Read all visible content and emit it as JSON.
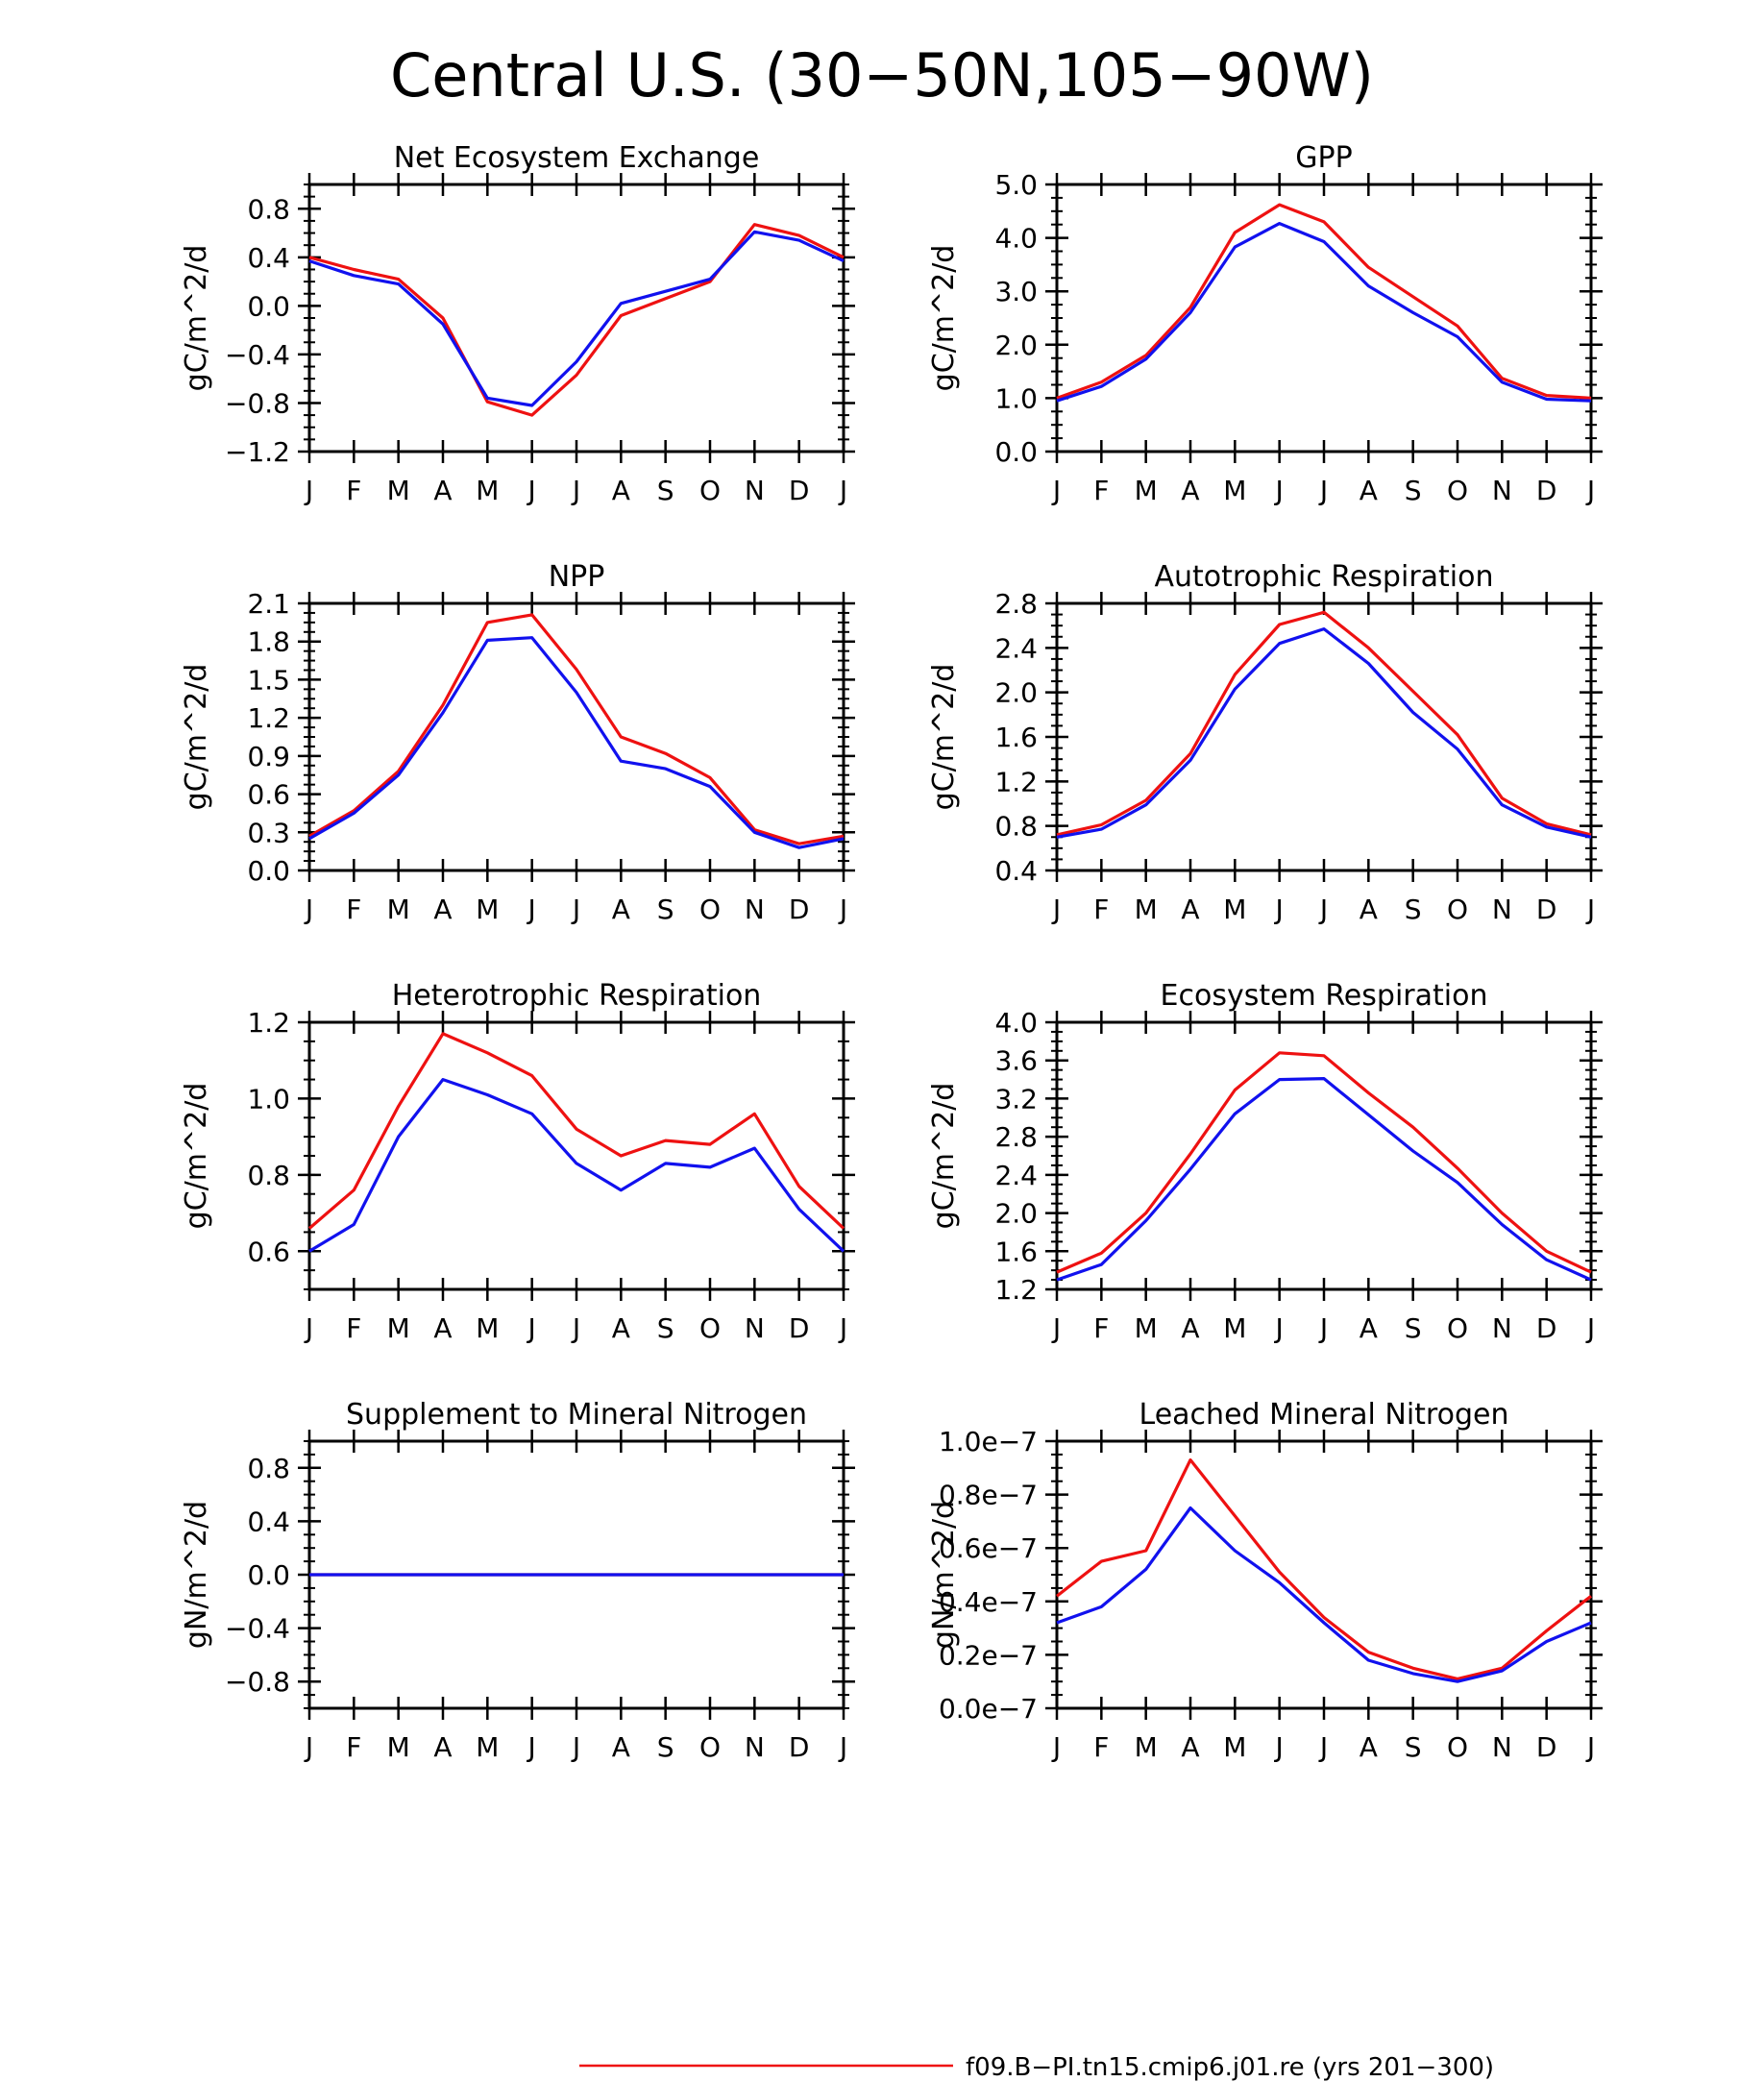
{
  "figure": {
    "title": "Central U.S. (30−50N,105−90W)",
    "legend": [
      {
        "label": "f09.B−PI.tn15.cmip6.j01.re (yrs 201−300)",
        "color": "#ee1111"
      }
    ]
  },
  "colors": {
    "red": "#ee1111",
    "blue": "#1111ee",
    "axis": "#000000"
  },
  "chart_data": [
    {
      "type": "line",
      "title": "Net Ecosystem Exchange",
      "ylabel": "gC/m^2/d",
      "x": [
        "J",
        "F",
        "M",
        "A",
        "M",
        "J",
        "J",
        "A",
        "S",
        "O",
        "N",
        "D",
        "J"
      ],
      "ylim": [
        -1.2,
        1.0
      ],
      "yticks": [
        -1.2,
        -0.8,
        -0.4,
        0.0,
        0.4,
        0.8
      ],
      "ytick_labels": [
        "−1.2",
        "−0.8",
        "−0.4",
        "0.0",
        "0.4",
        "0.8"
      ],
      "series": [
        {
          "color": "red",
          "values": [
            0.4,
            0.3,
            0.22,
            -0.1,
            -0.79,
            -0.9,
            -0.57,
            -0.08,
            0.06,
            0.2,
            0.67,
            0.58,
            0.4
          ]
        },
        {
          "color": "blue",
          "values": [
            0.37,
            0.25,
            0.18,
            -0.15,
            -0.76,
            -0.82,
            -0.46,
            0.02,
            0.12,
            0.22,
            0.61,
            0.54,
            0.37
          ]
        }
      ]
    },
    {
      "type": "line",
      "title": "GPP",
      "ylabel": "gC/m^2/d",
      "x": [
        "J",
        "F",
        "M",
        "A",
        "M",
        "J",
        "J",
        "A",
        "S",
        "O",
        "N",
        "D",
        "J"
      ],
      "ylim": [
        0.0,
        5.0
      ],
      "yticks": [
        0.0,
        1.0,
        2.0,
        3.0,
        4.0,
        5.0
      ],
      "ytick_labels": [
        "0.0",
        "1.0",
        "2.0",
        "3.0",
        "4.0",
        "5.0"
      ],
      "series": [
        {
          "color": "red",
          "values": [
            1.0,
            1.3,
            1.8,
            2.7,
            4.1,
            4.62,
            4.3,
            3.45,
            2.9,
            2.35,
            1.37,
            1.05,
            1.0
          ]
        },
        {
          "color": "blue",
          "values": [
            0.95,
            1.22,
            1.73,
            2.6,
            3.83,
            4.27,
            3.93,
            3.1,
            2.6,
            2.15,
            1.3,
            0.98,
            0.95
          ]
        }
      ]
    },
    {
      "type": "line",
      "title": "NPP",
      "ylabel": "gC/m^2/d",
      "x": [
        "J",
        "F",
        "M",
        "A",
        "M",
        "J",
        "J",
        "A",
        "S",
        "O",
        "N",
        "D",
        "J"
      ],
      "ylim": [
        0.0,
        2.1
      ],
      "yticks": [
        0.0,
        0.3,
        0.6,
        0.9,
        1.2,
        1.5,
        1.8,
        2.1
      ],
      "ytick_labels": [
        "0.0",
        "0.3",
        "0.6",
        "0.9",
        "1.2",
        "1.5",
        "1.8",
        "2.1"
      ],
      "series": [
        {
          "color": "red",
          "values": [
            0.27,
            0.47,
            0.78,
            1.3,
            1.95,
            2.01,
            1.58,
            1.05,
            0.92,
            0.73,
            0.32,
            0.21,
            0.27
          ]
        },
        {
          "color": "blue",
          "values": [
            0.25,
            0.45,
            0.75,
            1.24,
            1.81,
            1.83,
            1.4,
            0.86,
            0.8,
            0.66,
            0.3,
            0.18,
            0.25
          ]
        }
      ]
    },
    {
      "type": "line",
      "title": "Autotrophic Respiration",
      "ylabel": "gC/m^2/d",
      "x": [
        "J",
        "F",
        "M",
        "A",
        "M",
        "J",
        "J",
        "A",
        "S",
        "O",
        "N",
        "D",
        "J"
      ],
      "ylim": [
        0.4,
        2.8
      ],
      "yticks": [
        0.4,
        0.8,
        1.2,
        1.6,
        2.0,
        2.4,
        2.8
      ],
      "ytick_labels": [
        "0.4",
        "0.8",
        "1.2",
        "1.6",
        "2.0",
        "2.4",
        "2.8"
      ],
      "series": [
        {
          "color": "red",
          "values": [
            0.72,
            0.81,
            1.03,
            1.45,
            2.16,
            2.61,
            2.72,
            2.4,
            2.01,
            1.62,
            1.05,
            0.82,
            0.72
          ]
        },
        {
          "color": "blue",
          "values": [
            0.7,
            0.77,
            0.99,
            1.39,
            2.03,
            2.44,
            2.57,
            2.26,
            1.82,
            1.49,
            0.99,
            0.79,
            0.7
          ]
        }
      ]
    },
    {
      "type": "line",
      "title": "Heterotrophic Respiration",
      "ylabel": "gC/m^2/d",
      "x": [
        "J",
        "F",
        "M",
        "A",
        "M",
        "J",
        "J",
        "A",
        "S",
        "O",
        "N",
        "D",
        "J"
      ],
      "ylim": [
        0.5,
        1.2
      ],
      "yticks": [
        0.6,
        0.8,
        1.0,
        1.2
      ],
      "ytick_labels": [
        "0.6",
        "0.8",
        "1.0",
        "1.2"
      ],
      "series": [
        {
          "color": "red",
          "values": [
            0.66,
            0.76,
            0.98,
            1.17,
            1.12,
            1.06,
            0.92,
            0.85,
            0.89,
            0.88,
            0.96,
            0.77,
            0.66
          ]
        },
        {
          "color": "blue",
          "values": [
            0.6,
            0.67,
            0.9,
            1.05,
            1.01,
            0.96,
            0.83,
            0.76,
            0.83,
            0.82,
            0.87,
            0.71,
            0.6
          ]
        }
      ]
    },
    {
      "type": "line",
      "title": "Ecosystem Respiration",
      "ylabel": "gC/m^2/d",
      "x": [
        "J",
        "F",
        "M",
        "A",
        "M",
        "J",
        "J",
        "A",
        "S",
        "O",
        "N",
        "D",
        "J"
      ],
      "ylim": [
        1.2,
        4.0
      ],
      "yticks": [
        1.2,
        1.6,
        2.0,
        2.4,
        2.8,
        3.2,
        3.6,
        4.0
      ],
      "ytick_labels": [
        "1.2",
        "1.6",
        "2.0",
        "2.4",
        "2.8",
        "3.2",
        "3.6",
        "4.0"
      ],
      "series": [
        {
          "color": "red",
          "values": [
            1.38,
            1.58,
            2.0,
            2.62,
            3.29,
            3.68,
            3.65,
            3.26,
            2.9,
            2.47,
            2.0,
            1.6,
            1.38
          ]
        },
        {
          "color": "blue",
          "values": [
            1.3,
            1.46,
            1.92,
            2.46,
            3.04,
            3.4,
            3.41,
            3.03,
            2.65,
            2.32,
            1.88,
            1.51,
            1.3
          ]
        }
      ]
    },
    {
      "type": "line",
      "title": "Supplement to Mineral Nitrogen",
      "ylabel": "gN/m^2/d",
      "x": [
        "J",
        "F",
        "M",
        "A",
        "M",
        "J",
        "J",
        "A",
        "S",
        "O",
        "N",
        "D",
        "J"
      ],
      "ylim": [
        -1.0,
        1.0
      ],
      "yticks": [
        -0.8,
        -0.4,
        0.0,
        0.4,
        0.8
      ],
      "ytick_labels": [
        "−0.8",
        "−0.4",
        "0.0",
        "0.4",
        "0.8"
      ],
      "series": [
        {
          "color": "red",
          "values": [
            0,
            0,
            0,
            0,
            0,
            0,
            0,
            0,
            0,
            0,
            0,
            0,
            0
          ]
        },
        {
          "color": "blue",
          "values": [
            0,
            0,
            0,
            0,
            0,
            0,
            0,
            0,
            0,
            0,
            0,
            0,
            0
          ]
        }
      ]
    },
    {
      "type": "line",
      "title": "Leached Mineral Nitrogen",
      "ylabel": "gN/m^2/d",
      "x": [
        "J",
        "F",
        "M",
        "A",
        "M",
        "J",
        "J",
        "A",
        "S",
        "O",
        "N",
        "D",
        "J"
      ],
      "ylim": [
        0.0,
        1e-07
      ],
      "yticks": [
        0.0,
        2e-08,
        4e-08,
        6e-08,
        8e-08,
        1e-07
      ],
      "ytick_labels": [
        "0.0e−7",
        "0.2e−7",
        "0.4e−7",
        "0.6e−7",
        "0.8e−7",
        "1.0e−7"
      ],
      "series": [
        {
          "color": "red",
          "values": [
            4.2e-08,
            5.5e-08,
            5.9e-08,
            9.3e-08,
            7.2e-08,
            5.1e-08,
            3.4e-08,
            2.1e-08,
            1.5e-08,
            1.1e-08,
            1.5e-08,
            2.9e-08,
            4.2e-08
          ]
        },
        {
          "color": "blue",
          "values": [
            3.2e-08,
            3.8e-08,
            5.2e-08,
            7.5e-08,
            5.9e-08,
            4.7e-08,
            3.2e-08,
            1.8e-08,
            1.3e-08,
            1e-08,
            1.4e-08,
            2.5e-08,
            3.2e-08
          ]
        }
      ]
    }
  ]
}
